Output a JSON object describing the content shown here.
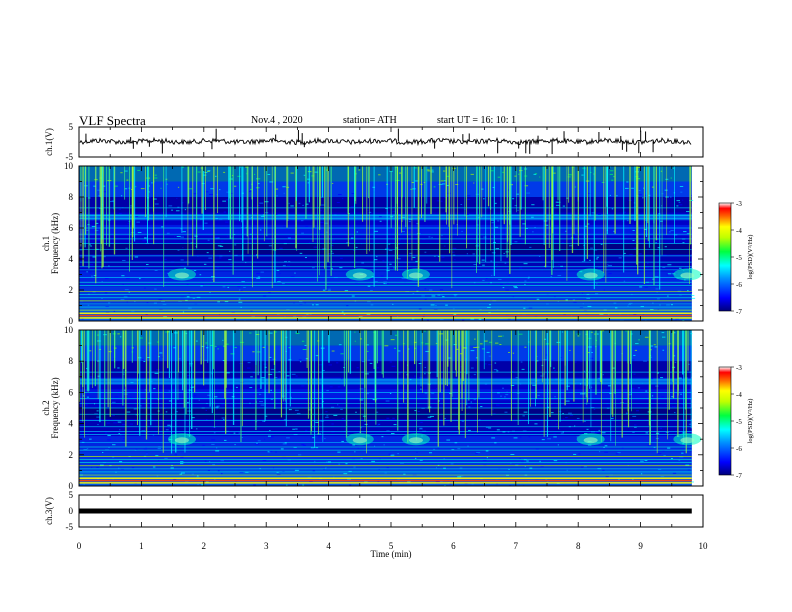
{
  "header": {
    "title": "VLF Spectra",
    "date": "Nov.4 , 2020",
    "station": "station= ATH",
    "start": "start UT = 16: 10: 1"
  },
  "colors": {
    "colormap": [
      "#00007a",
      "#0000ff",
      "#0080ff",
      "#00ffff",
      "#00ff60",
      "#a0ff00",
      "#ffff00",
      "#ff8000",
      "#ff0000",
      "#ffffff"
    ],
    "trace": "#000000"
  },
  "chart_data": [
    {
      "type": "line",
      "ylabel": "ch.1(V)",
      "ylim": [
        -5,
        5
      ],
      "yticks": [
        "5",
        "-5"
      ],
      "xlim": [
        0,
        10
      ],
      "x_range_min": [
        0,
        9.82
      ],
      "baseline_v": 0.2
    },
    {
      "type": "heatmap",
      "ylabel": "Frequency (kHz)",
      "channel": "ch.1",
      "ylim": [
        0,
        10
      ],
      "yticks": [
        "0",
        "2",
        "4",
        "6",
        "8",
        "10"
      ],
      "xlim": [
        0,
        10
      ],
      "x_range_min": [
        0,
        9.82
      ],
      "colorbar": {
        "label": "log(PSD)(V²/Hz)",
        "range": [
          -7,
          -3
        ],
        "ticks": [
          "-3",
          "-4",
          "-5",
          "-6",
          "-7"
        ]
      },
      "chorus_bursts_min": [
        1.65,
        4.5,
        5.4,
        8.2,
        9.75
      ],
      "chorus_freq_khz": 3.0
    },
    {
      "type": "heatmap",
      "ylabel": "Frequency (kHz)",
      "channel": "ch.2",
      "ylim": [
        0,
        10
      ],
      "yticks": [
        "0",
        "2",
        "4",
        "6",
        "8",
        "10"
      ],
      "xlim": [
        0,
        10
      ],
      "x_range_min": [
        0,
        9.82
      ],
      "colorbar": {
        "label": "log(PSD)(V²/Hz)",
        "range": [
          -7,
          -3
        ],
        "ticks": [
          "-3",
          "-4",
          "-5",
          "-6",
          "-7"
        ]
      },
      "chorus_bursts_min": [
        1.65,
        4.5,
        5.4,
        8.2,
        9.75
      ],
      "chorus_freq_khz": 3.0
    },
    {
      "type": "line",
      "ylabel": "ch.3(V)",
      "ylim": [
        -5,
        5
      ],
      "yticks": [
        "5",
        "0",
        "-5"
      ],
      "xlim": [
        0,
        10
      ],
      "x_range_min": [
        0,
        9.82
      ],
      "baseline_v": 0
    }
  ],
  "xaxis": {
    "label": "Time (min)",
    "ticks": [
      "0",
      "1",
      "2",
      "3",
      "4",
      "5",
      "6",
      "7",
      "8",
      "9",
      "10"
    ]
  }
}
